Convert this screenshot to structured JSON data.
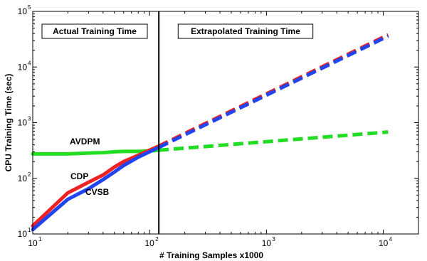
{
  "chart_data": {
    "type": "line",
    "xscale": "log",
    "yscale": "log",
    "xlabel": "# Training Samples x1000",
    "ylabel": "CPU Training Time (sec)",
    "xlim": [
      10,
      20000
    ],
    "ylim": [
      10,
      100000
    ],
    "x_ticks": [
      {
        "base": "10",
        "exp": "1"
      },
      {
        "base": "10",
        "exp": "2"
      },
      {
        "base": "10",
        "exp": "3"
      },
      {
        "base": "10",
        "exp": "4"
      }
    ],
    "y_ticks": [
      {
        "base": "10",
        "exp": "1"
      },
      {
        "base": "10",
        "exp": "2"
      },
      {
        "base": "10",
        "exp": "3"
      },
      {
        "base": "10",
        "exp": "4"
      },
      {
        "base": "10",
        "exp": "5"
      }
    ],
    "divider_x": 120,
    "annotations": {
      "actual": "Actual Training Time",
      "extrapolated": "Extrapolated Training Time"
    },
    "series": [
      {
        "name": "AVDPM",
        "color": "#22dd22",
        "actual": {
          "x": [
            10,
            20,
            30,
            40,
            50,
            60,
            80,
            100,
            120
          ],
          "y": [
            275,
            275,
            285,
            290,
            300,
            305,
            305,
            310,
            320
          ]
        },
        "extrapolated": {
          "x": [
            120,
            11000
          ],
          "y": [
            320,
            680
          ]
        }
      },
      {
        "name": "CDP",
        "color": "#ee2222",
        "actual": {
          "x": [
            10,
            20,
            30,
            40,
            50,
            60,
            80,
            100,
            120
          ],
          "y": [
            14,
            55,
            85,
            115,
            160,
            200,
            260,
            320,
            380
          ]
        },
        "extrapolated": {
          "x": [
            120,
            11000
          ],
          "y": [
            380,
            38000
          ]
        }
      },
      {
        "name": "CVSB",
        "color": "#2244ee",
        "actual": {
          "x": [
            10,
            20,
            30,
            40,
            50,
            60,
            80,
            100,
            120
          ],
          "y": [
            12,
            42,
            65,
            95,
            130,
            170,
            240,
            300,
            360
          ]
        },
        "extrapolated": {
          "x": [
            120,
            11000
          ],
          "y": [
            360,
            36000
          ]
        }
      }
    ]
  }
}
